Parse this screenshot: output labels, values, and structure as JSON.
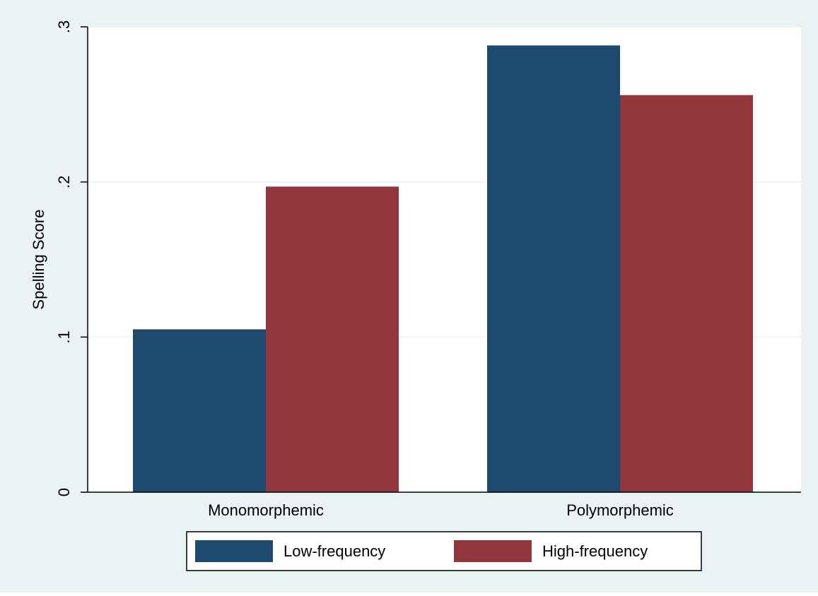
{
  "chart_data": {
    "type": "bar",
    "title": "",
    "xlabel": "",
    "ylabel": "Spelling Score",
    "categories": [
      "Monomorphemic",
      "Polymorphemic"
    ],
    "series": [
      {
        "name": "Low-frequency",
        "color": "#1f4a70",
        "values": [
          0.105,
          0.288
        ]
      },
      {
        "name": "High-frequency",
        "color": "#91363d",
        "values": [
          0.197,
          0.256
        ]
      }
    ],
    "ylim": [
      0,
      0.3
    ],
    "yticks": [
      {
        "value": 0,
        "label": "0"
      },
      {
        "value": 0.1,
        "label": ".1"
      },
      {
        "value": 0.2,
        "label": ".2"
      },
      {
        "value": 0.3,
        "label": ".3"
      }
    ],
    "grid": true,
    "legend_position": "bottom",
    "colors": {
      "outer_background": "#eaf2f3",
      "plot_background": "#ffffff",
      "grid": "#eaf2f3",
      "axis": "#000000"
    }
  }
}
